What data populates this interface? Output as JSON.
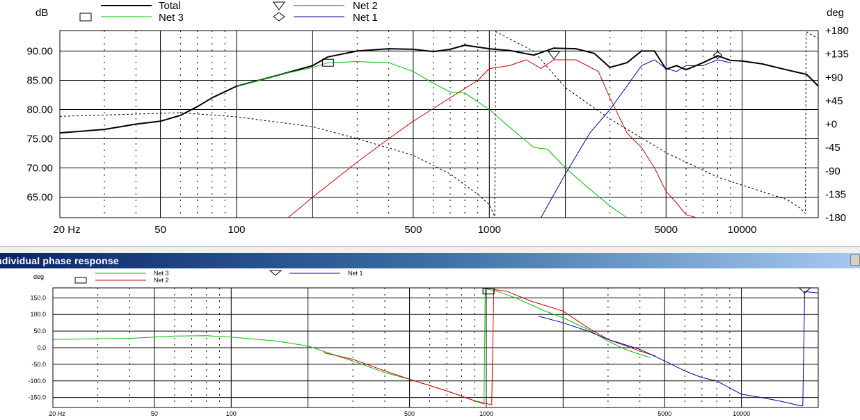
{
  "chart_data": [
    {
      "type": "line",
      "title": "",
      "ylabel": "dB",
      "y2label": "deg",
      "x_scale": "log",
      "xlim": [
        20,
        20000
      ],
      "ylim": [
        61.5,
        93.5
      ],
      "y2lim": [
        -180,
        180
      ],
      "x_ticks": [
        "20 Hz",
        "50",
        "100",
        "500",
        "1000",
        "5000",
        "10000"
      ],
      "x_tick_values": [
        20,
        50,
        100,
        500,
        1000,
        5000,
        10000
      ],
      "y_ticks": [
        "90.00",
        "85.00",
        "80.00",
        "75.00",
        "70.00",
        "65.00"
      ],
      "y_tick_values": [
        90,
        85,
        80,
        75,
        70,
        65
      ],
      "y2_ticks": [
        "+180",
        "+135",
        "+90",
        "+45",
        "+0",
        "-45",
        "-90",
        "-135",
        "-180"
      ],
      "y2_tick_values": [
        180,
        135,
        90,
        45,
        0,
        -45,
        -90,
        -135,
        -180
      ],
      "grid": true,
      "legend": [
        {
          "name": "Total",
          "color": "#000000",
          "marker": "none"
        },
        {
          "name": "Net 3",
          "color": "#00bb00",
          "marker": "square"
        },
        {
          "name": "Net 2",
          "color": "#cc0000",
          "marker": "triangle"
        },
        {
          "name": "Net 1",
          "color": "#000099",
          "marker": "diamond"
        }
      ],
      "series": [
        {
          "name": "Total",
          "color": "#000000",
          "width": 2,
          "dashed": false,
          "points": [
            [
              20,
              76.0
            ],
            [
              30,
              76.6
            ],
            [
              40,
              77.5
            ],
            [
              50,
              78.0
            ],
            [
              60,
              79.0
            ],
            [
              70,
              80.5
            ],
            [
              80,
              82.0
            ],
            [
              100,
              84.0
            ],
            [
              150,
              86.0
            ],
            [
              200,
              87.5
            ],
            [
              230,
              89.0
            ],
            [
              300,
              90.0
            ],
            [
              400,
              90.4
            ],
            [
              500,
              90.3
            ],
            [
              600,
              89.9
            ],
            [
              700,
              90.3
            ],
            [
              800,
              91.0
            ],
            [
              1000,
              90.4
            ],
            [
              1200,
              90.1
            ],
            [
              1500,
              89.3
            ],
            [
              1800,
              90.5
            ],
            [
              2200,
              90.4
            ],
            [
              2600,
              89.6
            ],
            [
              3000,
              87.2
            ],
            [
              3500,
              88.0
            ],
            [
              4000,
              90.0
            ],
            [
              4500,
              90.0
            ],
            [
              5000,
              86.9
            ],
            [
              5500,
              87.5
            ],
            [
              6000,
              86.8
            ],
            [
              7000,
              88.0
            ],
            [
              8000,
              89.2
            ],
            [
              9000,
              88.4
            ],
            [
              10000,
              88.3
            ],
            [
              12000,
              87.8
            ],
            [
              14000,
              87.1
            ],
            [
              16000,
              86.5
            ],
            [
              18000,
              86.0
            ],
            [
              19500,
              84.5
            ],
            [
              20000,
              84.0
            ]
          ]
        },
        {
          "name": "Net 3",
          "color": "#00bb00",
          "width": 1,
          "dashed": false,
          "points": [
            [
              100,
              84.0
            ],
            [
              150,
              86.0
            ],
            [
              200,
              87.2
            ],
            [
              230,
              88.0
            ],
            [
              300,
              88.2
            ],
            [
              400,
              88.0
            ],
            [
              500,
              86.5
            ],
            [
              600,
              84.5
            ],
            [
              700,
              83.0
            ],
            [
              800,
              82.8
            ],
            [
              1000,
              80.0
            ],
            [
              1200,
              77.0
            ],
            [
              1500,
              73.5
            ],
            [
              1700,
              73.2
            ],
            [
              2000,
              70.0
            ],
            [
              2400,
              67.0
            ],
            [
              3000,
              63.5
            ],
            [
              3500,
              61.5
            ]
          ]
        },
        {
          "name": "Net 2",
          "color": "#cc0000",
          "width": 1,
          "dashed": false,
          "points": [
            [
              160,
              61.5
            ],
            [
              200,
              65.0
            ],
            [
              300,
              71.0
            ],
            [
              400,
              75.0
            ],
            [
              500,
              78.0
            ],
            [
              700,
              82.0
            ],
            [
              900,
              85.0
            ],
            [
              1000,
              87.0
            ],
            [
              1200,
              87.5
            ],
            [
              1400,
              88.5
            ],
            [
              1600,
              87.0
            ],
            [
              1800,
              88.5
            ],
            [
              2200,
              88.5
            ],
            [
              2700,
              86.5
            ],
            [
              3000,
              82.0
            ],
            [
              3500,
              76.0
            ],
            [
              4000,
              73.5
            ],
            [
              4500,
              70.0
            ],
            [
              5000,
              66.0
            ],
            [
              5500,
              64.0
            ],
            [
              6000,
              62.0
            ],
            [
              6600,
              61.5
            ]
          ]
        },
        {
          "name": "Net 1",
          "color": "#000099",
          "width": 1,
          "dashed": false,
          "points": [
            [
              1600,
              61.5
            ],
            [
              2000,
              69.0
            ],
            [
              2500,
              76.0
            ],
            [
              3000,
              80.0
            ],
            [
              3500,
              84.0
            ],
            [
              4000,
              87.5
            ],
            [
              4500,
              88.5
            ],
            [
              5000,
              87.0
            ],
            [
              5500,
              86.5
            ],
            [
              6000,
              87.5
            ],
            [
              7000,
              87.5
            ],
            [
              8000,
              88.5
            ],
            [
              9000,
              88.0
            ]
          ]
        },
        {
          "name": "Total phase",
          "color": "#000000",
          "width": 1,
          "dashed": true,
          "axis": "right",
          "points": [
            [
              20,
              15
            ],
            [
              60,
              22
            ],
            [
              100,
              14
            ],
            [
              200,
              -5
            ],
            [
              300,
              -28
            ],
            [
              500,
              -60
            ],
            [
              700,
              -96
            ],
            [
              900,
              -135
            ],
            [
              1000,
              -155
            ],
            [
              1050,
              -178
            ],
            [
              1060,
              178
            ],
            [
              1500,
              140
            ],
            [
              2000,
              70
            ],
            [
              3000,
              10
            ],
            [
              5000,
              -55
            ],
            [
              8000,
              -102
            ],
            [
              12000,
              -130
            ],
            [
              15000,
              -145
            ],
            [
              17000,
              -162
            ],
            [
              17800,
              -172
            ],
            [
              17900,
              178
            ],
            [
              20000,
              165
            ]
          ]
        }
      ]
    },
    {
      "type": "line",
      "title": "Individual phase response",
      "ylabel": "deg",
      "x_scale": "log",
      "xlim": [
        20,
        20000
      ],
      "ylim": [
        -180,
        180
      ],
      "x_ticks": [
        "20 Hz",
        "50",
        "100",
        "500",
        "1000",
        "5000",
        "10000"
      ],
      "x_tick_values": [
        20,
        50,
        100,
        500,
        1000,
        5000,
        10000
      ],
      "y_ticks": [
        "150.0",
        "100.0",
        "50.0",
        "0.0",
        "-50.0",
        "-100.0",
        "-150.0"
      ],
      "y_tick_values": [
        150,
        100,
        50,
        0,
        -50,
        -100,
        -150
      ],
      "grid": true,
      "legend": [
        {
          "name": "Net 3",
          "color": "#00bb00",
          "marker": "square"
        },
        {
          "name": "Net 2",
          "color": "#cc0000",
          "marker": "square"
        },
        {
          "name": "Net 1",
          "color": "#000099",
          "marker": "triangle"
        }
      ],
      "series": [
        {
          "name": "Net 3",
          "color": "#00bb00",
          "width": 1,
          "dashed": false,
          "points": [
            [
              20,
              25
            ],
            [
              40,
              28
            ],
            [
              60,
              35
            ],
            [
              80,
              36
            ],
            [
              100,
              32
            ],
            [
              150,
              20
            ],
            [
              200,
              5
            ],
            [
              250,
              -20
            ],
            [
              300,
              -40
            ],
            [
              400,
              -75
            ],
            [
              500,
              -95
            ],
            [
              700,
              -130
            ],
            [
              900,
              -160
            ],
            [
              980,
              -170
            ],
            [
              990,
              178
            ],
            [
              1100,
              170
            ],
            [
              1300,
              150
            ],
            [
              1700,
              110
            ],
            [
              2000,
              90
            ],
            [
              2500,
              55
            ],
            [
              3000,
              20
            ],
            [
              3500,
              -5
            ],
            [
              4000,
              -20
            ],
            [
              4400,
              -30
            ]
          ]
        },
        {
          "name": "Net 2",
          "color": "#cc0000",
          "width": 1,
          "dashed": false,
          "points": [
            [
              230,
              -15
            ],
            [
              300,
              -35
            ],
            [
              400,
              -70
            ],
            [
              500,
              -95
            ],
            [
              700,
              -130
            ],
            [
              900,
              -160
            ],
            [
              1050,
              -172
            ],
            [
              1070,
              175
            ],
            [
              1200,
              170
            ],
            [
              1500,
              140
            ],
            [
              2000,
              110
            ],
            [
              2500,
              60
            ],
            [
              3000,
              25
            ],
            [
              4000,
              -10
            ],
            [
              4600,
              -25
            ]
          ]
        },
        {
          "name": "Net 1",
          "color": "#000099",
          "width": 1,
          "dashed": false,
          "points": [
            [
              1600,
              95
            ],
            [
              2000,
              75
            ],
            [
              2500,
              50
            ],
            [
              3000,
              25
            ],
            [
              4000,
              -5
            ],
            [
              5000,
              -40
            ],
            [
              6000,
              -70
            ],
            [
              7000,
              -90
            ],
            [
              8000,
              -100
            ],
            [
              10000,
              -140
            ],
            [
              12000,
              -150
            ],
            [
              14000,
              -160
            ],
            [
              16000,
              -170
            ],
            [
              17000,
              -175
            ],
            [
              17400,
              -175
            ],
            [
              17700,
              170
            ],
            [
              18200,
              168
            ],
            [
              20000,
              165
            ]
          ]
        }
      ]
    }
  ],
  "window": {
    "title": "Individual phase response"
  }
}
